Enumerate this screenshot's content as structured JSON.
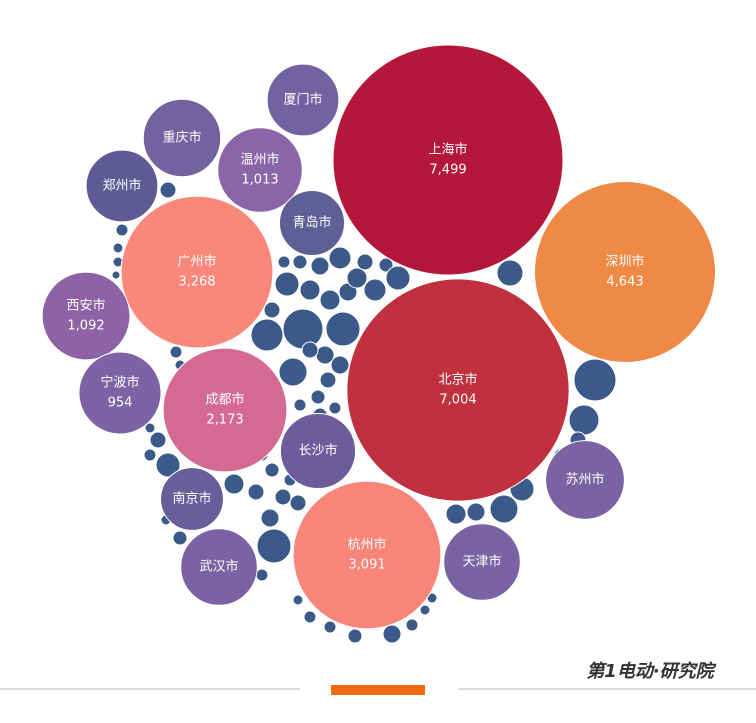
{
  "chart_data": {
    "type": "bubble",
    "categories": [
      "上海市",
      "北京市",
      "深圳市",
      "广州市",
      "杭州市",
      "成都市",
      "西安市",
      "温州市",
      "宁波市",
      "厦门市",
      "重庆市",
      "郑州市",
      "青岛市",
      "长沙市",
      "南京市",
      "武汉市",
      "天津市",
      "苏州市"
    ],
    "values": [
      7499,
      7004,
      4643,
      3268,
      3091,
      2173,
      1092,
      1013,
      954,
      730,
      850,
      730,
      600,
      800,
      560,
      830,
      830,
      880
    ],
    "value_labels": [
      "7,499",
      "7,004",
      "4,643",
      "3,268",
      "3,091",
      "2,173",
      "1,092",
      "1,013",
      "954",
      null,
      null,
      null,
      null,
      null,
      null,
      null,
      null,
      null
    ],
    "colors": [
      "#b5173b",
      "#c0303e",
      "#ee8a45",
      "#f9877a",
      "#f9857a",
      "#d46a92",
      "#8e63a6",
      "#8a65a8",
      "#7e63a4",
      "#7262a0",
      "#7262a0",
      "#5f5a94",
      "#5f5f98",
      "#6d5c9c",
      "#6a5d9c",
      "#7b62a3",
      "#7b62a3",
      "#7b62a3"
    ],
    "other_color": "#3b5a8a"
  },
  "footer": {
    "logo": "第1电动·研究院"
  }
}
